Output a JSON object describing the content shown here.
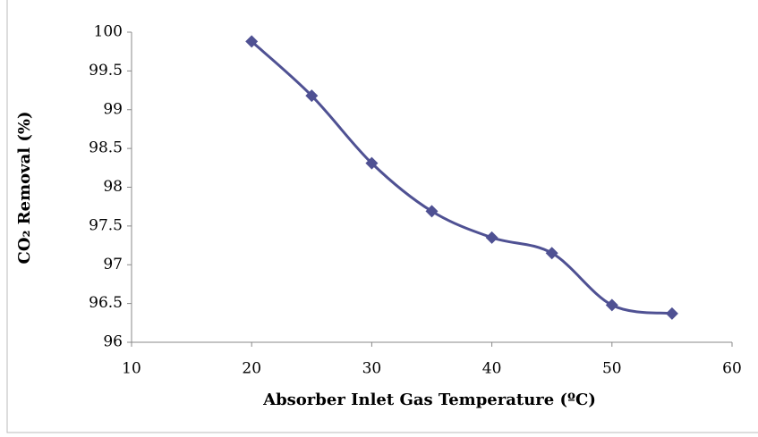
{
  "chart_data": {
    "type": "line",
    "x_label": "Absorber Inlet Gas Temperature (ºC)",
    "y_label": "CO₂ Removal (%)",
    "x": [
      20,
      25,
      30,
      35,
      40,
      45,
      50,
      55
    ],
    "series": [
      {
        "color": "#4f5193",
        "values": [
          99.88,
          99.18,
          98.31,
          97.69,
          97.35,
          97.15,
          96.48,
          96.37
        ]
      }
    ],
    "xlim": [
      10,
      60
    ],
    "xticks": [
      10,
      20,
      30,
      40,
      50,
      60
    ],
    "ylim": [
      96,
      100
    ],
    "yticks": [
      96,
      96.5,
      97,
      97.5,
      98,
      98.5,
      99,
      99.5,
      100
    ],
    "smooth": true,
    "marker": "diamond",
    "grid": false
  }
}
